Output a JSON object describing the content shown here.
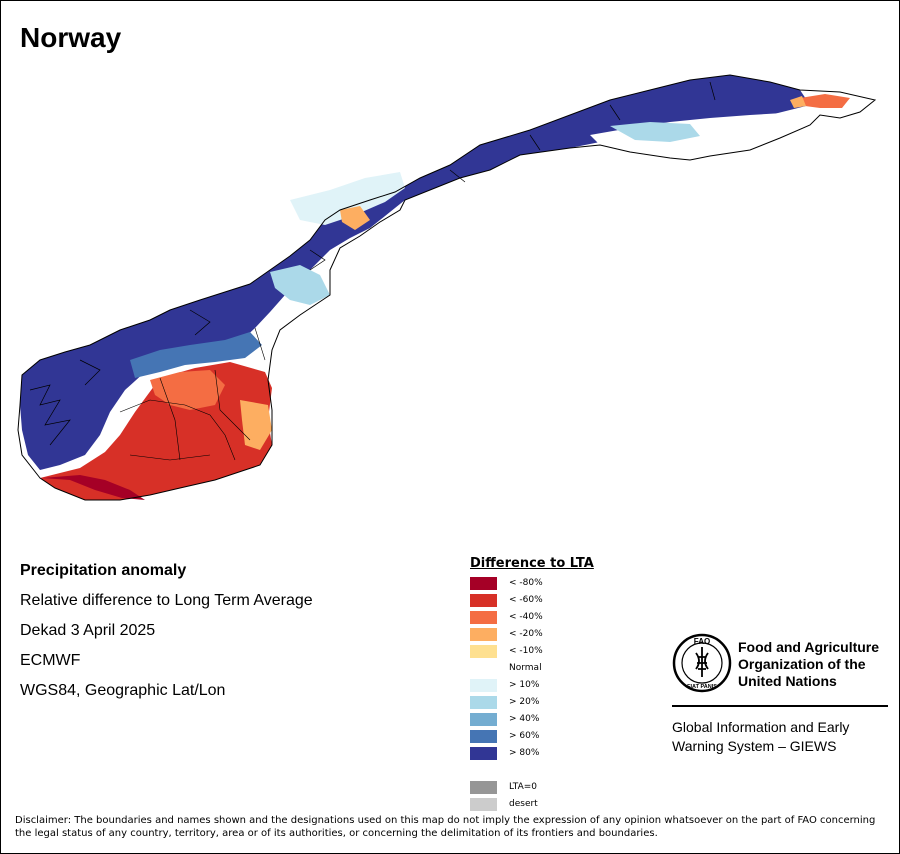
{
  "map_title": "Norway",
  "info": {
    "heading": "Precipitation anomaly",
    "description": "Relative difference to Long Term Average",
    "period": "Dekad 3 April 2025",
    "source": "ECMWF",
    "projection": "WGS84, Geographic Lat/Lon"
  },
  "legend": {
    "title": "Difference to LTA",
    "items": [
      {
        "label": "< -80%",
        "color": "#a50026"
      },
      {
        "label": "< -60%",
        "color": "#d73027"
      },
      {
        "label": "< -40%",
        "color": "#f46d43"
      },
      {
        "label": "< -20%",
        "color": "#fdae61"
      },
      {
        "label": "< -10%",
        "color": "#fee090"
      },
      {
        "label": "Normal",
        "color": "#ffffff"
      },
      {
        "label": "> 10%",
        "color": "#e0f3f8"
      },
      {
        "label": "> 20%",
        "color": "#abd9e9"
      },
      {
        "label": "> 40%",
        "color": "#74add1"
      },
      {
        "label": "> 60%",
        "color": "#4575b4"
      },
      {
        "label": "> 80%",
        "color": "#313695"
      },
      {
        "label": "",
        "color": "#ffffff"
      },
      {
        "label": "LTA=0",
        "color": "#969696"
      },
      {
        "label": "desert",
        "color": "#cccccc"
      }
    ]
  },
  "org": {
    "name": "Food and Agriculture Organization of the United Nations",
    "logo_text": "FAO",
    "logo_motto": "FIAT PANIS",
    "system": "Global Information and Early Warning System – GIEWS"
  },
  "disclaimer": "Disclaimer: The boundaries and names shown and the designations used on this map do not imply the expression of any opinion whatsoever on the part of FAO concerning the legal status of any country, territory, area or of its authorities, or concerning the delimitation of its frontiers and boundaries."
}
